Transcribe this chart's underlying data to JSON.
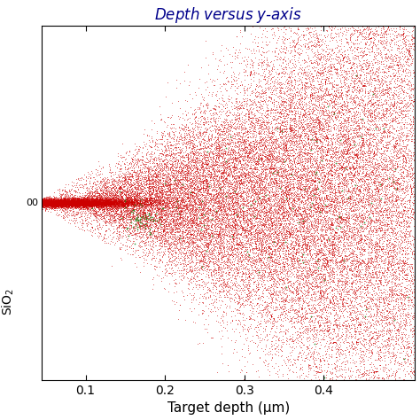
{
  "title": "Depth versus $y$-axis",
  "title_color": "#00008B",
  "xlabel": "Target depth (μm)",
  "ylabel_text": "SiO$_2$",
  "xlim": [
    0.045,
    0.515
  ],
  "ylim": [
    -0.17,
    0.17
  ],
  "xticks": [
    0.1,
    0.2,
    0.3,
    0.4
  ],
  "background_color": "#ffffff",
  "red_color": "#cc0000",
  "green_color": "#228B22",
  "figsize": [
    4.74,
    4.74
  ],
  "dpi": 100,
  "seed": 42
}
